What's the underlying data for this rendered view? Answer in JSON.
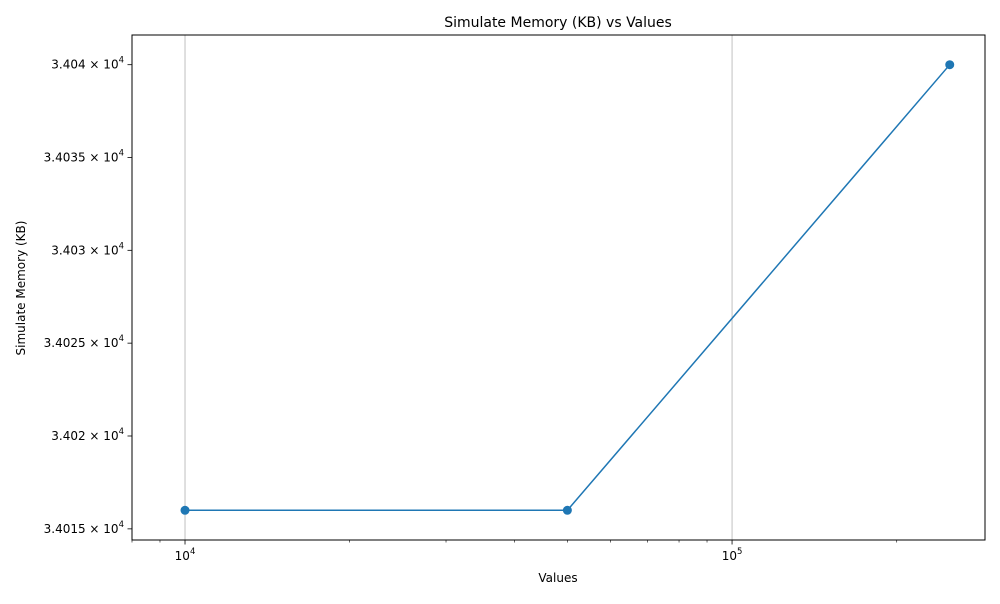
{
  "chart_data": {
    "type": "line",
    "title": "Simulate Memory (KB) vs Values",
    "xlabel": "Values",
    "ylabel": "Simulate Memory (KB)",
    "x_scale": "log",
    "y_scale": "log",
    "xlim": [
      8000,
      290000
    ],
    "ylim": [
      34014.4,
      34041.6
    ],
    "grid": "x-major",
    "x_major_ticks": [
      {
        "value": 10000,
        "base": "10",
        "exp": "4"
      },
      {
        "value": 100000,
        "base": "10",
        "exp": "5"
      }
    ],
    "y_ticks": [
      {
        "value": 34015,
        "mantissa": "3.4015",
        "base": "10",
        "exp": "4"
      },
      {
        "value": 34020,
        "mantissa": "3.402",
        "base": "10",
        "exp": "4"
      },
      {
        "value": 34025,
        "mantissa": "3.4025",
        "base": "10",
        "exp": "4"
      },
      {
        "value": 34030,
        "mantissa": "3.403",
        "base": "10",
        "exp": "4"
      },
      {
        "value": 34035,
        "mantissa": "3.4035",
        "base": "10",
        "exp": "4"
      },
      {
        "value": 34040,
        "mantissa": "3.404",
        "base": "10",
        "exp": "4"
      }
    ],
    "series": [
      {
        "color": "#1f77b4",
        "marker": "circle",
        "x": [
          10000,
          50000,
          250000
        ],
        "y": [
          34016,
          34016,
          34040
        ]
      }
    ]
  }
}
